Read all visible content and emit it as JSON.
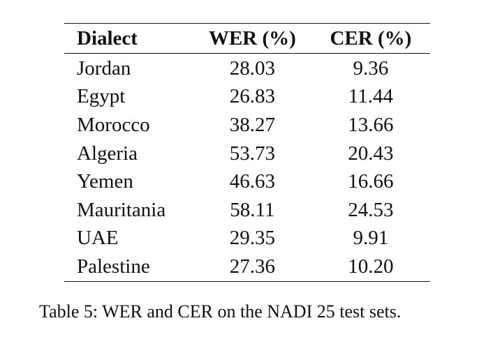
{
  "table": {
    "headers": {
      "dialect": "Dialect",
      "wer": "WER (%)",
      "cer": "CER (%)"
    },
    "rows": [
      {
        "dialect": "Jordan",
        "wer": "28.03",
        "cer": "9.36"
      },
      {
        "dialect": "Egypt",
        "wer": "26.83",
        "cer": "11.44"
      },
      {
        "dialect": "Morocco",
        "wer": "38.27",
        "cer": "13.66"
      },
      {
        "dialect": "Algeria",
        "wer": "53.73",
        "cer": "20.43"
      },
      {
        "dialect": "Yemen",
        "wer": "46.63",
        "cer": "16.66"
      },
      {
        "dialect": "Mauritania",
        "wer": "58.11",
        "cer": "24.53"
      },
      {
        "dialect": "UAE",
        "wer": "29.35",
        "cer": "9.91"
      },
      {
        "dialect": "Palestine",
        "wer": "27.36",
        "cer": "10.20"
      }
    ]
  },
  "caption": "Table 5: WER and CER on the NADI 25 test sets."
}
